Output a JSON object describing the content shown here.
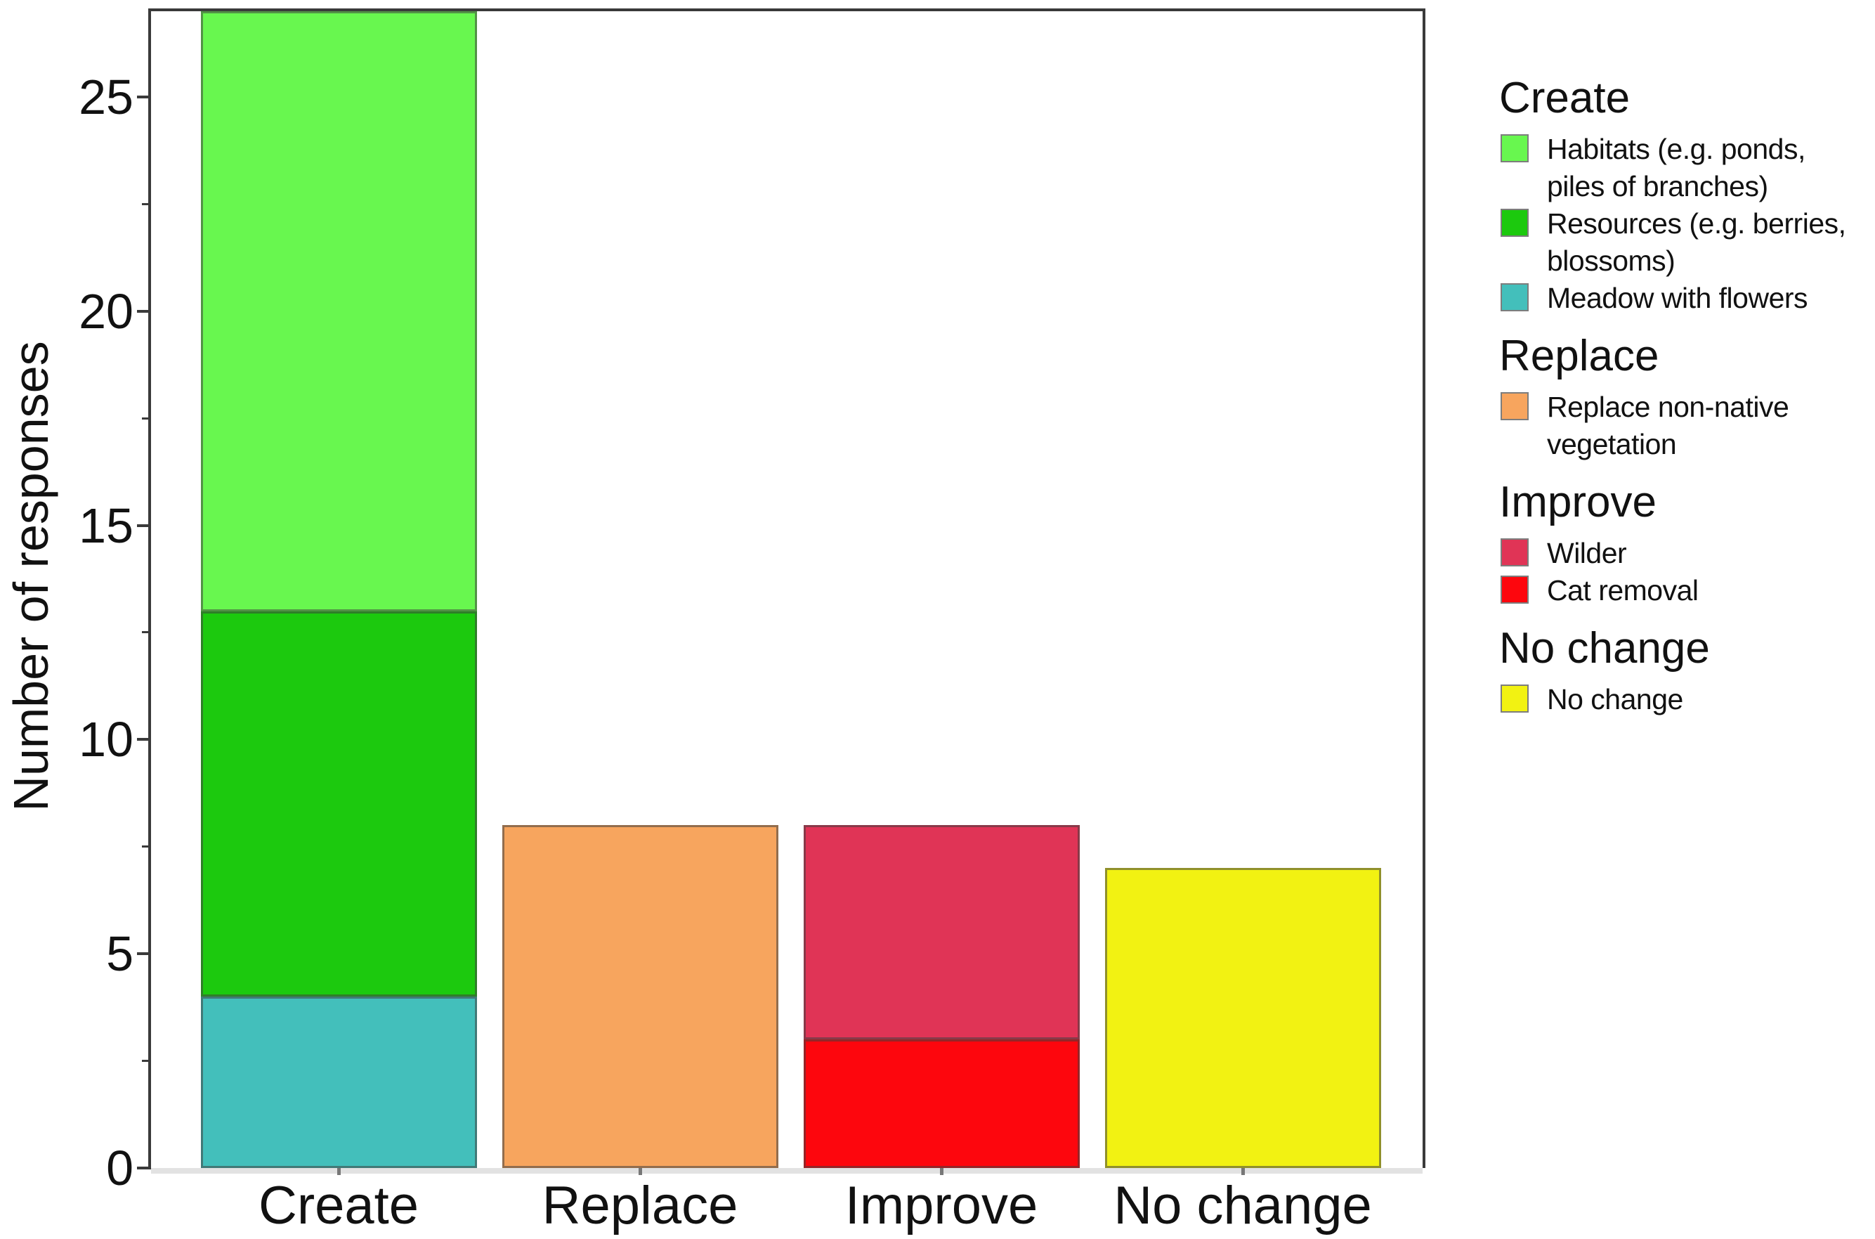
{
  "chart_data": {
    "type": "bar",
    "subtype": "stacked",
    "title": "",
    "xlabel": "",
    "ylabel": "Number of responses",
    "ylim": [
      0,
      27
    ],
    "yticks": [
      0,
      5,
      10,
      15,
      20,
      25
    ],
    "minor_yticks": [
      2.5,
      7.5,
      12.5,
      17.5,
      22.5
    ],
    "grid": false,
    "legend_position": "right",
    "categories": [
      "Create",
      "Replace",
      "Improve",
      "No change"
    ],
    "series": [
      {
        "name": "Meadow with flowers",
        "color": "#43BFBB",
        "values": [
          4,
          0,
          0,
          0
        ]
      },
      {
        "name": "Resources (e.g. berries, blossoms)",
        "color": "#1CC90E",
        "values": [
          9,
          0,
          0,
          0
        ]
      },
      {
        "name": "Habitats (e.g. ponds, piles of branches)",
        "color": "#68F74F",
        "values": [
          14,
          0,
          0,
          0
        ]
      },
      {
        "name": "Replace non-native vegetation",
        "color": "#F7A55E",
        "values": [
          0,
          8,
          0,
          0
        ]
      },
      {
        "name": "Cat removal",
        "color": "#FD060D",
        "values": [
          0,
          0,
          3,
          0
        ]
      },
      {
        "name": "Wilder",
        "color": "#E03456",
        "values": [
          0,
          0,
          5,
          0
        ]
      },
      {
        "name": "No change",
        "color": "#F2F212",
        "values": [
          0,
          0,
          0,
          7
        ]
      }
    ]
  },
  "legend": {
    "groups": [
      {
        "title": "Create",
        "items": [
          {
            "label": "Habitats (e.g. ponds,\npiles of branches)",
            "color": "#68F74F"
          },
          {
            "label": "Resources (e.g. berries,\nblossoms)",
            "color": "#1CC90E"
          },
          {
            "label": "Meadow with flowers",
            "color": "#43BFBB"
          }
        ]
      },
      {
        "title": "Replace",
        "items": [
          {
            "label": "Replace non-native\nvegetation",
            "color": "#F7A55E"
          }
        ]
      },
      {
        "title": "Improve",
        "items": [
          {
            "label": "Wilder",
            "color": "#E03456"
          },
          {
            "label": "Cat removal",
            "color": "#FD060D"
          }
        ]
      },
      {
        "title": "No change",
        "items": [
          {
            "label": "No change",
            "color": "#F2F212"
          }
        ]
      }
    ]
  },
  "colors": {
    "axis_frame": "#3a3a3a",
    "baseline": "#e2e2e2",
    "background": "#ffffff"
  }
}
